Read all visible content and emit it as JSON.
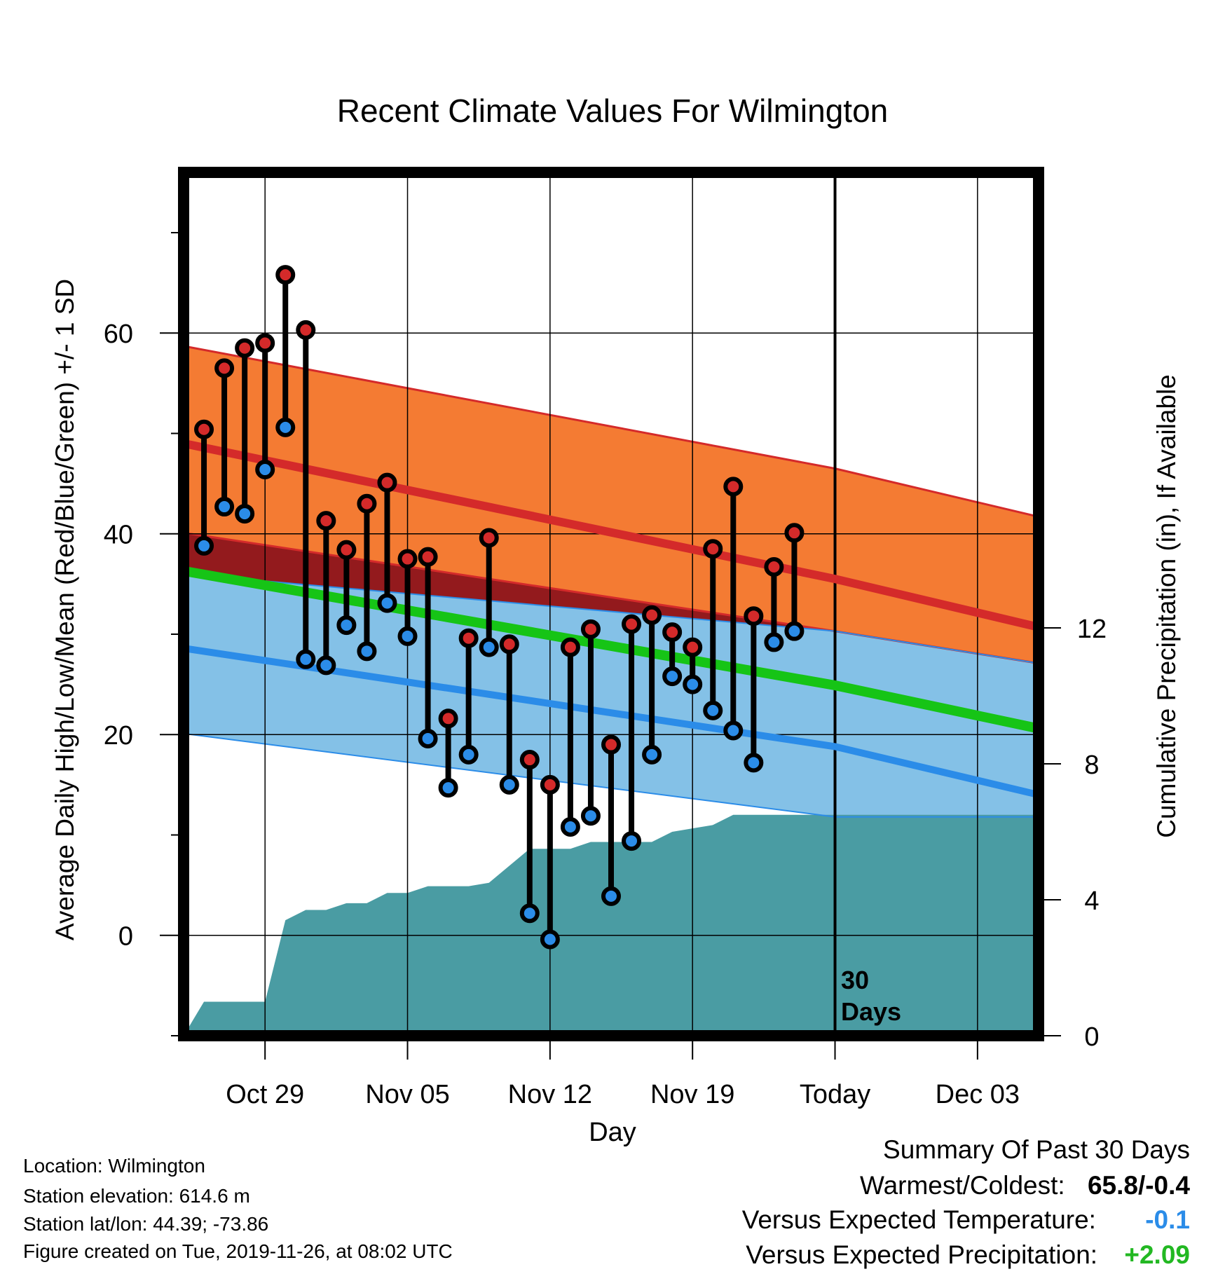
{
  "title": "Recent Climate Values For Wilmington",
  "y_left_label": "Average Daily High/Low/Mean (Red/Blue/Green) +/- 1 SD",
  "y_right_label": "Cumulative Precipitation (in), If Available",
  "x_label": "Day",
  "today_marker": {
    "line1": "30",
    "line2": "Days"
  },
  "chart_data": {
    "type": "line",
    "title": "Recent Climate Values For Wilmington",
    "xlabel": "Day",
    "ylabel": "Average Daily High/Low/Mean (Red/Blue/Green) +/- 1 SD",
    "y2label": "Cumulative Precipitation (in), If Available",
    "x_range": [
      "2019-10-25",
      "2019-12-06"
    ],
    "ylim": [
      -10,
      76
    ],
    "y2lim": [
      0,
      25.4
    ],
    "y_ticks": [
      0,
      20,
      40,
      60
    ],
    "y2_ticks": [
      0,
      4,
      8,
      12
    ],
    "x_ticks": [
      {
        "date": "2019-10-29",
        "label": "Oct 29"
      },
      {
        "date": "2019-11-05",
        "label": "Nov 05"
      },
      {
        "date": "2019-11-12",
        "label": "Nov 12"
      },
      {
        "date": "2019-11-19",
        "label": "Nov 19"
      },
      {
        "date": "2019-11-26",
        "label": "Today"
      },
      {
        "date": "2019-12-03",
        "label": "Dec 03"
      }
    ],
    "grid": true,
    "today": "2019-11-26",
    "normals": {
      "dates": [
        "2019-10-25",
        "2019-11-26",
        "2019-12-06"
      ],
      "high_mean": [
        49.0,
        35.5,
        30.7
      ],
      "high_upper": [
        58.7,
        46.5,
        41.7
      ],
      "high_lower": [
        40.1,
        30.3,
        27.1
      ],
      "low_mean": [
        28.6,
        18.8,
        14.0
      ],
      "low_upper": [
        36.0,
        30.3,
        27.1
      ],
      "low_lower": [
        20.1,
        11.8,
        11.8
      ],
      "mean": [
        36.3,
        24.9,
        20.6
      ]
    },
    "series": [
      {
        "name": "High",
        "color": "#d42a2a",
        "dates": [
          "2019-10-26",
          "2019-10-27",
          "2019-10-28",
          "2019-10-29",
          "2019-10-30",
          "2019-10-31",
          "2019-11-01",
          "2019-11-02",
          "2019-11-03",
          "2019-11-04",
          "2019-11-05",
          "2019-11-06",
          "2019-11-07",
          "2019-11-08",
          "2019-11-09",
          "2019-11-10",
          "2019-11-11",
          "2019-11-12",
          "2019-11-13",
          "2019-11-14",
          "2019-11-15",
          "2019-11-16",
          "2019-11-17",
          "2019-11-18",
          "2019-11-19",
          "2019-11-20",
          "2019-11-21",
          "2019-11-22",
          "2019-11-23",
          "2019-11-24",
          "2019-11-25"
        ],
        "values": [
          50.4,
          56.5,
          58.5,
          59.0,
          65.8,
          60.3,
          41.3,
          38.4,
          43.0,
          45.1,
          37.5,
          37.7,
          21.6,
          29.6,
          39.6,
          29.0,
          17.5,
          15.0,
          28.7,
          30.5,
          19.0,
          31.0,
          31.9,
          30.2,
          28.7,
          38.5,
          44.7,
          31.8,
          36.7,
          40.1,
          null
        ]
      },
      {
        "name": "Low",
        "color": "#2b8ce8",
        "dates": [
          "2019-10-26",
          "2019-10-27",
          "2019-10-28",
          "2019-10-29",
          "2019-10-30",
          "2019-10-31",
          "2019-11-01",
          "2019-11-02",
          "2019-11-03",
          "2019-11-04",
          "2019-11-05",
          "2019-11-06",
          "2019-11-07",
          "2019-11-08",
          "2019-11-09",
          "2019-11-10",
          "2019-11-11",
          "2019-11-12",
          "2019-11-13",
          "2019-11-14",
          "2019-11-15",
          "2019-11-16",
          "2019-11-17",
          "2019-11-18",
          "2019-11-19",
          "2019-11-20",
          "2019-11-21",
          "2019-11-22",
          "2019-11-23",
          "2019-11-24",
          "2019-11-25"
        ],
        "values": [
          38.8,
          42.7,
          42.0,
          46.4,
          50.6,
          27.5,
          26.9,
          30.9,
          28.3,
          33.1,
          29.8,
          19.6,
          14.7,
          18.0,
          28.7,
          15.0,
          2.2,
          -0.4,
          10.8,
          11.9,
          3.9,
          9.4,
          18.0,
          25.8,
          25.0,
          22.4,
          20.4,
          17.2,
          29.2,
          30.3,
          null
        ]
      },
      {
        "name": "Cumulative Precipitation",
        "color": "#4a9ca3",
        "dates": [
          "2019-10-25",
          "2019-10-26",
          "2019-10-28",
          "2019-10-29",
          "2019-10-30",
          "2019-10-31",
          "2019-11-01",
          "2019-11-02",
          "2019-11-03",
          "2019-11-04",
          "2019-11-05",
          "2019-11-06",
          "2019-11-07",
          "2019-11-08",
          "2019-11-09",
          "2019-11-10",
          "2019-11-11",
          "2019-11-12",
          "2019-11-13",
          "2019-11-14",
          "2019-11-15",
          "2019-11-16",
          "2019-11-17",
          "2019-11-18",
          "2019-11-19",
          "2019-11-20",
          "2019-11-21",
          "2019-11-22",
          "2019-11-23",
          "2019-11-24",
          "2019-12-06"
        ],
        "values": [
          0.0,
          1.0,
          1.0,
          1.0,
          3.4,
          3.7,
          3.7,
          3.9,
          3.9,
          4.2,
          4.2,
          4.4,
          4.4,
          4.4,
          4.5,
          5.0,
          5.5,
          5.5,
          5.5,
          5.7,
          5.7,
          5.7,
          5.7,
          6.0,
          6.1,
          6.2,
          6.5,
          6.5,
          6.5,
          6.5,
          6.5
        ]
      }
    ]
  },
  "info": {
    "location": "Location: Wilmington",
    "elevation": "Station elevation: 614.6 m",
    "latlon": "Station lat/lon: 44.39; -73.86",
    "created": "Figure created on Tue, 2019-11-26, at 08:02 UTC"
  },
  "summary": {
    "heading": "Summary Of Past 30 Days",
    "warm_cold_label": "Warmest/Coldest:",
    "warm_cold_value": "65.8/-0.4",
    "temp_label": "Versus Expected Temperature:",
    "temp_value": "-0.1",
    "temp_color": "#2b8ce8",
    "precip_label": "Versus Expected Precipitation:",
    "precip_value": "+2.09",
    "precip_color": "#22b822"
  }
}
